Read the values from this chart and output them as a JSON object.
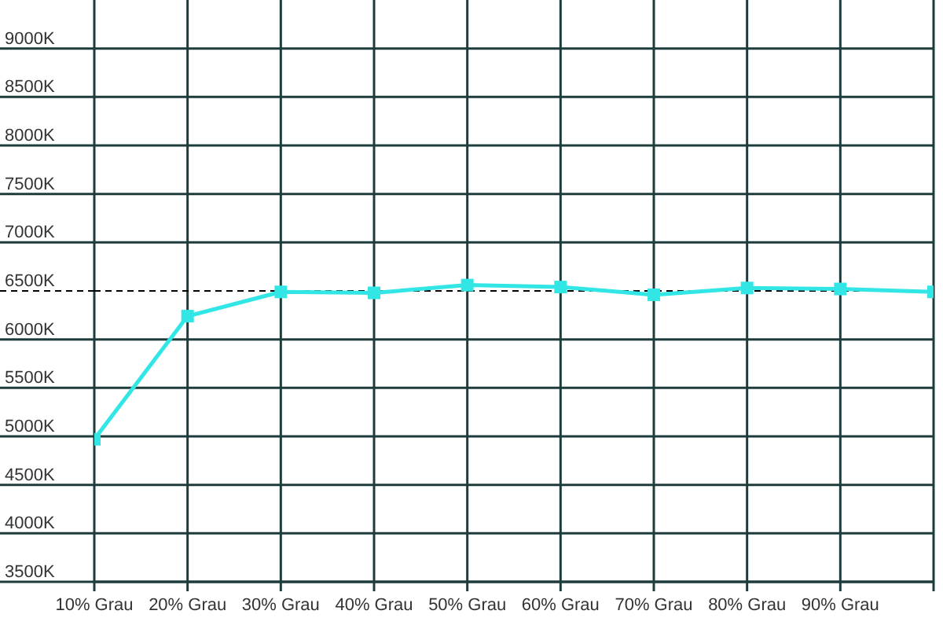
{
  "chart_data": {
    "type": "line",
    "categories": [
      "10% Grau",
      "20% Grau",
      "30% Grau",
      "40% Grau",
      "50% Grau",
      "60% Grau",
      "70% Grau",
      "80% Grau",
      "90% Grau",
      null
    ],
    "values": [
      4970,
      6240,
      6490,
      6480,
      6560,
      6540,
      6460,
      6530,
      6520,
      6490
    ],
    "color": "#33e6e6",
    "ylim": [
      3500,
      9500
    ],
    "yticks": [
      {
        "value": 3500,
        "label": "3500K"
      },
      {
        "value": 4000,
        "label": "4000K"
      },
      {
        "value": 4500,
        "label": "4500K"
      },
      {
        "value": 5000,
        "label": "5000K"
      },
      {
        "value": 5500,
        "label": "5500K"
      },
      {
        "value": 6000,
        "label": "6000K"
      },
      {
        "value": 6500,
        "label": "6500K"
      },
      {
        "value": 7000,
        "label": "7000K"
      },
      {
        "value": 7500,
        "label": "7500K"
      },
      {
        "value": 8000,
        "label": "8000K"
      },
      {
        "value": 8500,
        "label": "8500K"
      },
      {
        "value": 9000,
        "label": "9000K"
      }
    ],
    "grid": true,
    "marker": "square",
    "line_style": "solid",
    "ref_lines": [
      {
        "axis": "y",
        "value": 6500,
        "color": "#000000",
        "line_style": "dashed"
      }
    ]
  }
}
